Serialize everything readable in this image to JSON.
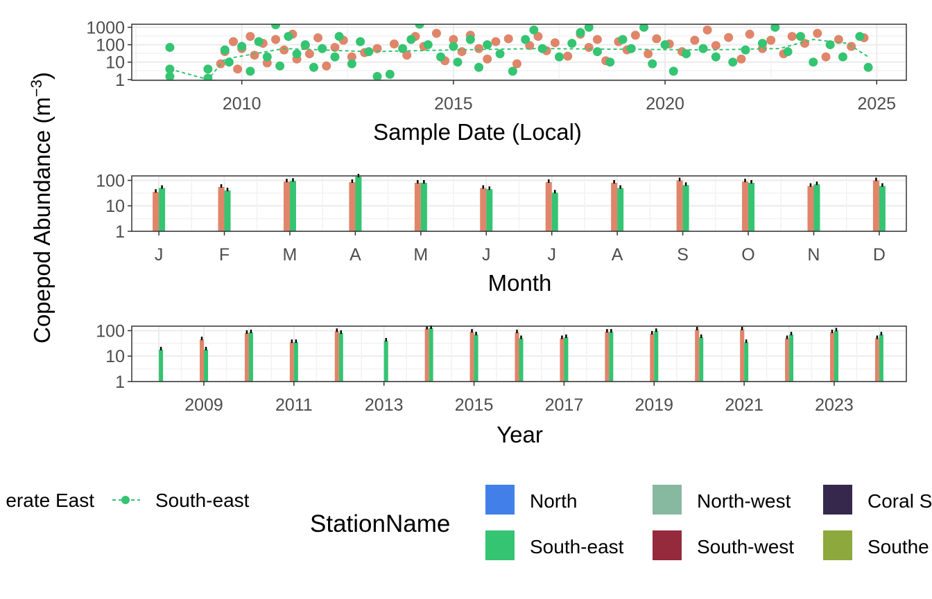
{
  "y_axis_title": "Copepod Abundance (m",
  "y_axis_title_sup": "−3",
  "y_axis_title_close": ")",
  "colors": {
    "series_a": "#E0856A",
    "south_east": "#34C472",
    "north": "#427FE9",
    "north_west": "#87B8A0",
    "coral_sea": "#36284D",
    "south_west": "#952A3D",
    "southern": "#8DA83C"
  },
  "legend_left": {
    "partial_label": "erate East",
    "series_label": "South-east"
  },
  "legend_right": {
    "title": "StationName",
    "items": [
      "North",
      "North-west",
      "Coral S",
      "South-east",
      "South-west",
      "Southe"
    ]
  },
  "chart_data": [
    {
      "type": "scatter",
      "xlabel": "Sample Date (Local)",
      "y_scale": "log10",
      "ylim": [
        0.9,
        1500
      ],
      "y_ticks": [
        1,
        10,
        100,
        1000
      ],
      "y_tick_labels": [
        "1",
        "10",
        "100",
        "1000"
      ],
      "xlim": [
        2007.4,
        2025.7
      ],
      "x_ticks": [
        2010,
        2015,
        2020,
        2025
      ],
      "x_tick_labels": [
        "2010",
        "2015",
        "2020",
        "2025"
      ],
      "series": [
        {
          "color": "#E0856A",
          "points": [
            [
              2009.5,
              8
            ],
            [
              2009.6,
              40
            ],
            [
              2009.8,
              150
            ],
            [
              2009.9,
              4
            ],
            [
              2010.0,
              60
            ],
            [
              2010.2,
              300
            ],
            [
              2010.3,
              25
            ],
            [
              2010.5,
              120
            ],
            [
              2010.6,
              9
            ],
            [
              2010.8,
              200
            ],
            [
              2011.0,
              50
            ],
            [
              2011.2,
              400
            ],
            [
              2011.3,
              15
            ],
            [
              2011.5,
              90
            ],
            [
              2011.6,
              30
            ],
            [
              2011.8,
              250
            ],
            [
              2012.0,
              6
            ],
            [
              2012.2,
              70
            ],
            [
              2012.4,
              180
            ],
            [
              2012.6,
              20
            ],
            [
              2012.9,
              35
            ],
            [
              2013.2,
              60
            ],
            [
              2013.6,
              110
            ],
            [
              2013.9,
              25
            ],
            [
              2014.1,
              300
            ],
            [
              2014.3,
              80
            ],
            [
              2014.6,
              450
            ],
            [
              2014.8,
              12
            ],
            [
              2015.0,
              200
            ],
            [
              2015.2,
              40
            ],
            [
              2015.4,
              350
            ],
            [
              2015.6,
              60
            ],
            [
              2015.8,
              15
            ],
            [
              2016.0,
              150
            ],
            [
              2016.3,
              220
            ],
            [
              2016.5,
              8
            ],
            [
              2016.8,
              90
            ],
            [
              2017.0,
              300
            ],
            [
              2017.2,
              45
            ],
            [
              2017.4,
              130
            ],
            [
              2017.7,
              22
            ],
            [
              2018.0,
              400
            ],
            [
              2018.2,
              70
            ],
            [
              2018.4,
              200
            ],
            [
              2018.6,
              12
            ],
            [
              2018.9,
              150
            ],
            [
              2019.1,
              50
            ],
            [
              2019.3,
              350
            ],
            [
              2019.6,
              30
            ],
            [
              2019.8,
              220
            ],
            [
              2020.1,
              110
            ],
            [
              2020.4,
              40
            ],
            [
              2020.7,
              180
            ],
            [
              2021.0,
              700
            ],
            [
              2021.2,
              90
            ],
            [
              2021.5,
              260
            ],
            [
              2021.8,
              15
            ],
            [
              2022.0,
              400
            ],
            [
              2022.3,
              60
            ],
            [
              2022.5,
              180
            ],
            [
              2022.8,
              30
            ],
            [
              2023.0,
              300
            ],
            [
              2023.3,
              120
            ],
            [
              2023.6,
              450
            ],
            [
              2023.8,
              20
            ],
            [
              2024.1,
              200
            ],
            [
              2024.4,
              80
            ],
            [
              2024.7,
              250
            ]
          ]
        },
        {
          "name": "South-east",
          "color": "#34C472",
          "points": [
            [
              2008.3,
              70
            ],
            [
              2008.3,
              4
            ],
            [
              2008.3,
              1.5
            ],
            [
              2009.2,
              4
            ],
            [
              2009.2,
              1.2
            ],
            [
              2009.6,
              50
            ],
            [
              2009.7,
              10
            ],
            [
              2010.0,
              80
            ],
            [
              2010.2,
              3
            ],
            [
              2010.4,
              150
            ],
            [
              2010.6,
              20
            ],
            [
              2010.8,
              1400
            ],
            [
              2010.9,
              6
            ],
            [
              2011.1,
              300
            ],
            [
              2011.3,
              30
            ],
            [
              2011.5,
              100
            ],
            [
              2011.7,
              5
            ],
            [
              2011.9,
              60
            ],
            [
              2012.2,
              20
            ],
            [
              2012.3,
              300
            ],
            [
              2012.6,
              8
            ],
            [
              2012.8,
              150
            ],
            [
              2013.0,
              40
            ],
            [
              2013.2,
              1.5
            ],
            [
              2013.5,
              2
            ],
            [
              2013.8,
              60
            ],
            [
              2014.0,
              200
            ],
            [
              2014.2,
              1500
            ],
            [
              2014.4,
              100
            ],
            [
              2014.7,
              20
            ],
            [
              2015.0,
              80
            ],
            [
              2015.1,
              10
            ],
            [
              2015.4,
              200
            ],
            [
              2015.6,
              5
            ],
            [
              2015.8,
              100
            ],
            [
              2016.1,
              30
            ],
            [
              2016.4,
              3
            ],
            [
              2016.7,
              200
            ],
            [
              2016.9,
              700
            ],
            [
              2017.1,
              60
            ],
            [
              2017.5,
              20
            ],
            [
              2017.8,
              120
            ],
            [
              2018.0,
              500
            ],
            [
              2018.2,
              1000
            ],
            [
              2018.4,
              40
            ],
            [
              2018.7,
              10
            ],
            [
              2019.0,
              200
            ],
            [
              2019.2,
              60
            ],
            [
              2019.5,
              1000
            ],
            [
              2019.7,
              8
            ],
            [
              2020.0,
              100
            ],
            [
              2020.2,
              3
            ],
            [
              2020.5,
              30
            ],
            [
              2020.9,
              60
            ],
            [
              2021.2,
              20
            ],
            [
              2021.6,
              10
            ],
            [
              2021.9,
              50
            ],
            [
              2022.3,
              120
            ],
            [
              2022.6,
              1000
            ],
            [
              2022.9,
              40
            ],
            [
              2023.2,
              300
            ],
            [
              2023.5,
              10
            ],
            [
              2023.9,
              100
            ],
            [
              2024.2,
              20
            ],
            [
              2024.6,
              300
            ],
            [
              2024.8,
              5
            ]
          ],
          "trend": [
            [
              2008.3,
              4
            ],
            [
              2009.2,
              1
            ],
            [
              2009.6,
              15
            ],
            [
              2011,
              60
            ],
            [
              2013,
              40
            ],
            [
              2015,
              50
            ],
            [
              2017,
              60
            ],
            [
              2019,
              55
            ],
            [
              2021,
              50
            ],
            [
              2022.7,
              60
            ],
            [
              2023.5,
              200
            ],
            [
              2024.3,
              120
            ],
            [
              2024.8,
              20
            ]
          ]
        }
      ]
    },
    {
      "type": "bar",
      "xlabel": "Month",
      "y_scale": "log10",
      "ylim": [
        1,
        150
      ],
      "y_ticks": [
        1,
        10,
        100
      ],
      "y_tick_labels": [
        "1",
        "10",
        "100"
      ],
      "categories": [
        "J",
        "F",
        "M",
        "A",
        "M",
        "J",
        "J",
        "A",
        "S",
        "O",
        "N",
        "D"
      ],
      "series": [
        {
          "color": "#E0856A",
          "values": [
            35,
            55,
            90,
            85,
            80,
            50,
            85,
            80,
            100,
            90,
            60,
            100
          ]
        },
        {
          "name": "South-east",
          "color": "#34C472",
          "values": [
            50,
            40,
            95,
            140,
            80,
            45,
            33,
            50,
            65,
            80,
            70,
            60
          ]
        }
      ]
    },
    {
      "type": "bar",
      "xlabel": "Year",
      "y_scale": "log10",
      "ylim": [
        1,
        150
      ],
      "y_ticks": [
        1,
        10,
        100
      ],
      "y_tick_labels": [
        "1",
        "10",
        "100"
      ],
      "categories": [
        2008,
        2009,
        2010,
        2011,
        2012,
        2013,
        2014,
        2015,
        2016,
        2017,
        2018,
        2019,
        2020,
        2021,
        2022,
        2023,
        2024
      ],
      "x_tick_labels": [
        "2009",
        "2011",
        "2013",
        "2015",
        "2017",
        "2019",
        "2021",
        "2023"
      ],
      "series": [
        {
          "color": "#E0856A",
          "values": [
            null,
            45,
            80,
            35,
            95,
            null,
            120,
            90,
            85,
            50,
            90,
            75,
            110,
            110,
            50,
            85,
            50
          ]
        },
        {
          "name": "South-east",
          "color": "#34C472",
          "values": [
            18,
            18,
            85,
            35,
            80,
            40,
            125,
            70,
            50,
            55,
            90,
            95,
            55,
            35,
            70,
            100,
            70
          ]
        }
      ]
    }
  ]
}
